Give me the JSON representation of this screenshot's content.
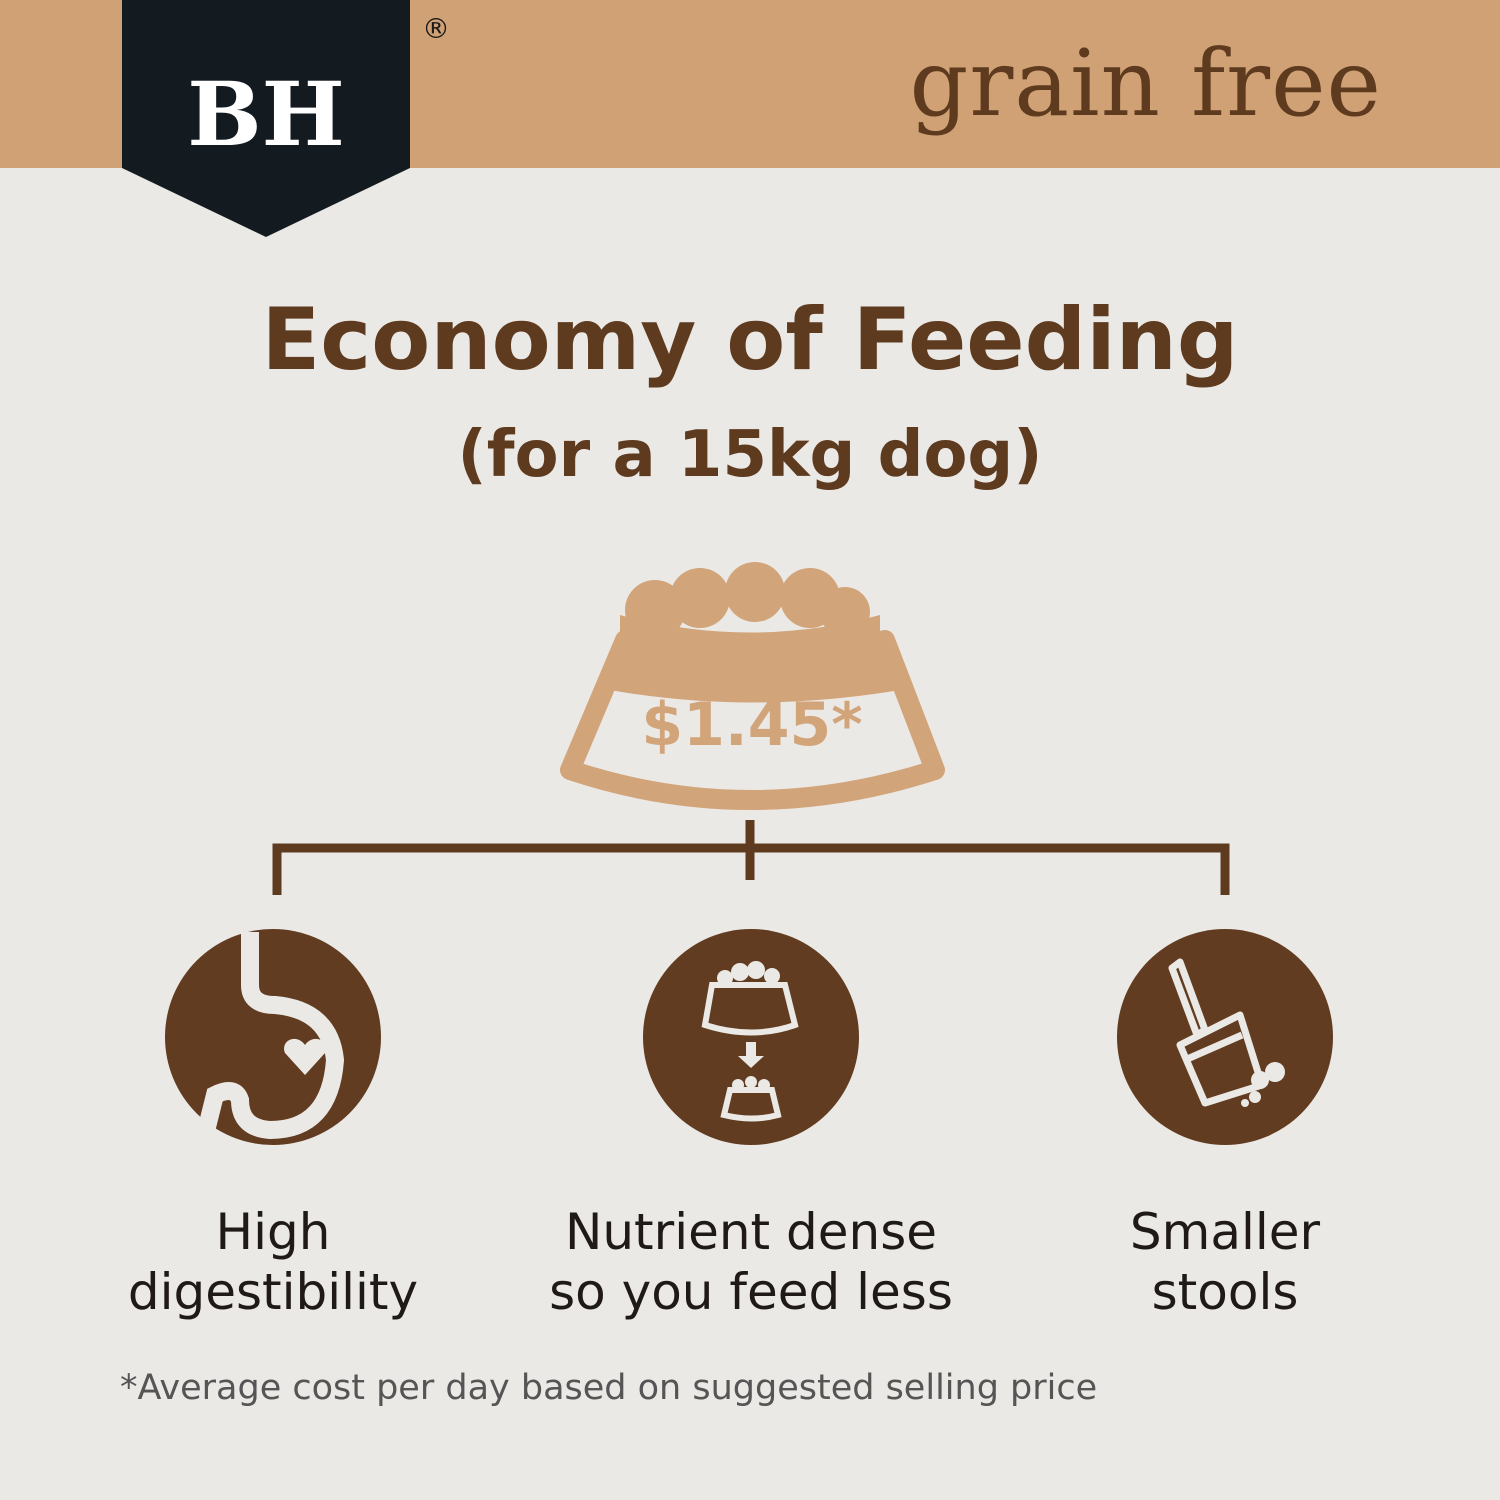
{
  "header": {
    "logo_text": "BH",
    "registered_mark": "®",
    "brand_line": "grain free"
  },
  "title": "Economy of Feeding",
  "subtitle": "(for a 15kg dog)",
  "price": "$1.45*",
  "colors": {
    "tan": "#cfa174",
    "brown": "#5e3a1f",
    "logo_bg": "#131a20",
    "background": "#ebe9e6"
  },
  "benefits": [
    {
      "icon": "stomach-heart-icon",
      "line1": "High",
      "line2": "digestibility"
    },
    {
      "icon": "bowl-reduce-icon",
      "line1": "Nutrient dense",
      "line2": "so you feed less"
    },
    {
      "icon": "pooper-scooper-icon",
      "line1": "Smaller",
      "line2": "stools"
    }
  ],
  "footnote": "*Average cost per day based on suggested selling price"
}
